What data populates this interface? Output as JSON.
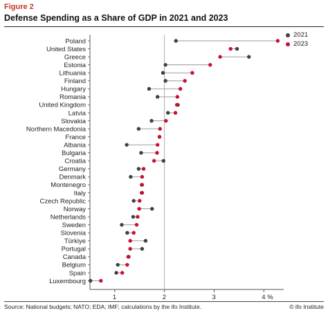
{
  "figure_label": "Figure 2",
  "title": "Defense Spending as a Share of GDP in 2021 and 2023",
  "source": "Source: National budgets; NATO; EDA; IMF; calculations by the ifo Institute.",
  "brand": "© ifo Institute",
  "colors": {
    "y2021": "#404040",
    "y2023": "#c8102e",
    "connector": "#9a9a9a",
    "refline": "#9a9a9a",
    "axis": "#555555"
  },
  "chart_data": {
    "type": "dot-plot",
    "title": "Defense Spending as a Share of GDP in 2021 and 2023",
    "xlabel": "",
    "xunit": "%",
    "xlim": [
      0.5,
      4.4
    ],
    "xticks": [
      1,
      2,
      3,
      4
    ],
    "xtick_labels": [
      "1",
      "2",
      "3",
      "4 %"
    ],
    "reference_line": 2,
    "grid": false,
    "legend_position": "top-right",
    "series": [
      {
        "name": "2021",
        "color": "#404040"
      },
      {
        "name": "2023",
        "color": "#c8102e"
      }
    ],
    "categories": [
      "Poland",
      "United States",
      "Greece",
      "Estonia",
      "Lithuania",
      "Finland",
      "Hungary",
      "Romania",
      "United Kingdom",
      "Latvia",
      "Slovakia",
      "Northern Macedonia",
      "France",
      "Albania",
      "Bulgaria",
      "Croatia",
      "Germany",
      "Denmark",
      "Montenegro",
      "Italy",
      "Czech Republic",
      "Norway",
      "Netherlands",
      "Sweden",
      "Slovenia",
      "Türkiye",
      "Portugal",
      "Canada",
      "Belgium",
      "Spain",
      "Luxembourg"
    ],
    "values_2021": [
      2.23,
      3.46,
      3.7,
      2.02,
      1.97,
      2.02,
      1.69,
      1.86,
      2.27,
      2.07,
      1.74,
      1.48,
      1.9,
      1.24,
      1.53,
      1.98,
      1.48,
      1.32,
      1.55,
      1.55,
      1.38,
      1.75,
      1.37,
      1.14,
      1.25,
      1.62,
      1.55,
      1.28,
      1.06,
      1.03,
      0.51
    ],
    "values_2023": [
      4.28,
      3.33,
      3.12,
      2.92,
      2.56,
      2.41,
      2.32,
      2.26,
      2.25,
      2.22,
      2.03,
      1.91,
      1.9,
      1.86,
      1.85,
      1.79,
      1.58,
      1.55,
      1.54,
      1.54,
      1.5,
      1.49,
      1.46,
      1.44,
      1.38,
      1.31,
      1.31,
      1.27,
      1.25,
      1.15,
      0.72
    ]
  }
}
